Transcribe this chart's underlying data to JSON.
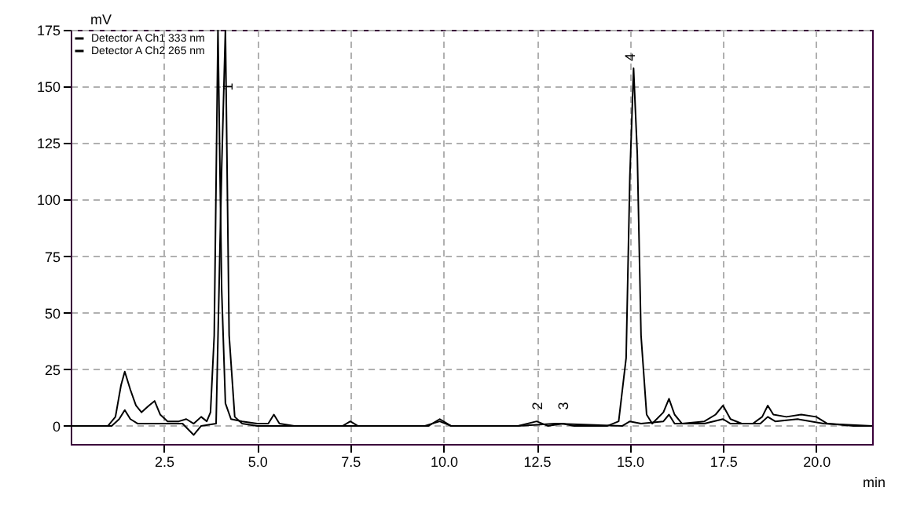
{
  "chart_data": {
    "type": "line",
    "xlabel": "min",
    "ylabel": "mV",
    "xlim": [
      0,
      21.5
    ],
    "ylim": [
      -8,
      175
    ],
    "xticks": [
      2.5,
      {
        "value": 5,
        "label": "5.0"
      },
      7.5,
      {
        "value": 10,
        "label": "10.0"
      },
      12.5,
      {
        "value": 15,
        "label": "15.0"
      },
      17.5,
      {
        "value": 20,
        "label": "20.0"
      }
    ],
    "yticks": [
      0,
      25,
      50,
      75,
      100,
      125,
      150,
      175
    ],
    "grid": true,
    "legend": "top left",
    "marker": "none",
    "line_style": "solid",
    "annotations": [
      {
        "text": "1",
        "x": 4.3,
        "y": 145
      },
      {
        "text": "2",
        "x": 12.6,
        "y": 4
      },
      {
        "text": "3",
        "x": 13.3,
        "y": 4
      },
      {
        "text": "4",
        "x": 15.1,
        "y": 158
      }
    ],
    "series": [
      {
        "name": "Detector A Ch1 333 nm",
        "color": "#000000",
        "x": [
          0,
          1.0,
          1.2,
          1.35,
          1.45,
          1.6,
          1.75,
          1.9,
          2.1,
          2.25,
          2.4,
          2.6,
          2.9,
          3.1,
          3.3,
          3.5,
          3.65,
          3.75,
          3.85,
          3.95,
          4.05,
          4.15,
          4.3,
          4.6,
          5.0,
          5.3,
          5.45,
          5.6,
          6.0,
          7.3,
          7.5,
          7.7,
          9.6,
          9.9,
          10.2,
          12.0,
          12.5,
          12.8,
          13.2,
          13.5,
          14.4,
          14.7,
          14.9,
          15.0,
          15.1,
          15.2,
          15.3,
          15.45,
          15.6,
          15.9,
          16.05,
          16.2,
          16.4,
          17.0,
          17.3,
          17.5,
          17.7,
          18.0,
          18.3,
          18.55,
          18.7,
          18.85,
          19.2,
          19.6,
          20.0,
          20.3,
          21.0,
          21.5
        ],
        "values": [
          0,
          0,
          4,
          18,
          24,
          16,
          9,
          6,
          9,
          11,
          5,
          2,
          2,
          3,
          1,
          4,
          2,
          6,
          40,
          175,
          60,
          10,
          3,
          2,
          1,
          1,
          5,
          1,
          0,
          0,
          2,
          0,
          0,
          3,
          0,
          0,
          2,
          0,
          1,
          0,
          0,
          2,
          30,
          110,
          158,
          120,
          40,
          5,
          1,
          6,
          12,
          5,
          1,
          2,
          5,
          9,
          3,
          1,
          1,
          4,
          9,
          5,
          4,
          5,
          4,
          1,
          0,
          0
        ]
      },
      {
        "name": "Detector A Ch2 265 nm",
        "color": "#000000",
        "x": [
          0,
          1.1,
          1.3,
          1.45,
          1.6,
          1.8,
          3.0,
          3.3,
          3.5,
          3.9,
          4.05,
          4.15,
          4.25,
          4.4,
          4.6,
          5.0,
          7.5,
          9.5,
          9.9,
          10.2,
          12.0,
          13.0,
          14.8,
          15.0,
          15.3,
          15.9,
          16.05,
          16.2,
          17.0,
          17.5,
          17.7,
          18.5,
          18.7,
          18.9,
          19.5,
          20.2,
          21.5
        ],
        "values": [
          0,
          0,
          3,
          7,
          3,
          1,
          1,
          -4,
          0,
          1,
          114,
          175,
          40,
          4,
          1,
          0,
          0,
          0,
          2,
          0,
          0,
          1,
          0,
          2,
          1,
          2,
          5,
          1,
          1,
          3,
          1,
          1,
          4,
          2,
          3,
          1,
          0
        ]
      }
    ]
  }
}
